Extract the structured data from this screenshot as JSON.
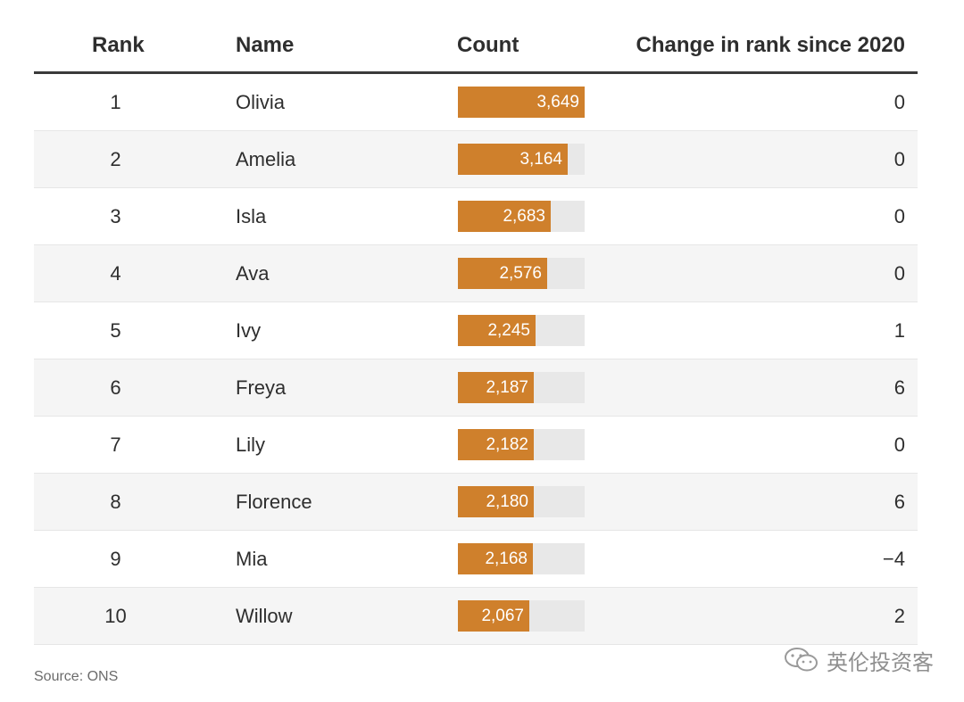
{
  "chart_data": {
    "type": "table",
    "columns": [
      "Rank",
      "Name",
      "Count",
      "Change in rank since 2020"
    ],
    "max_count": 3649,
    "rows": [
      {
        "rank": "1",
        "name": "Olivia",
        "count": 3649,
        "count_label": "3,649",
        "change": "0"
      },
      {
        "rank": "2",
        "name": "Amelia",
        "count": 3164,
        "count_label": "3,164",
        "change": "0"
      },
      {
        "rank": "3",
        "name": "Isla",
        "count": 2683,
        "count_label": "2,683",
        "change": "0"
      },
      {
        "rank": "4",
        "name": "Ava",
        "count": 2576,
        "count_label": "2,576",
        "change": "0"
      },
      {
        "rank": "5",
        "name": "Ivy",
        "count": 2245,
        "count_label": "2,245",
        "change": "1"
      },
      {
        "rank": "6",
        "name": "Freya",
        "count": 2187,
        "count_label": "2,187",
        "change": "6"
      },
      {
        "rank": "7",
        "name": "Lily",
        "count": 2182,
        "count_label": "2,182",
        "change": "0"
      },
      {
        "rank": "8",
        "name": "Florence",
        "count": 2180,
        "count_label": "2,180",
        "change": "6"
      },
      {
        "rank": "9",
        "name": "Mia",
        "count": 2168,
        "count_label": "2,168",
        "change": "−4"
      },
      {
        "rank": "10",
        "name": "Willow",
        "count": 2067,
        "count_label": "2,067",
        "change": "2"
      }
    ],
    "colors": {
      "bar": "#cf802c",
      "track": "#e8e8e8"
    }
  },
  "source": "Source: ONS",
  "watermark": {
    "text": "英伦投资客",
    "icon": "wechat-icon"
  }
}
